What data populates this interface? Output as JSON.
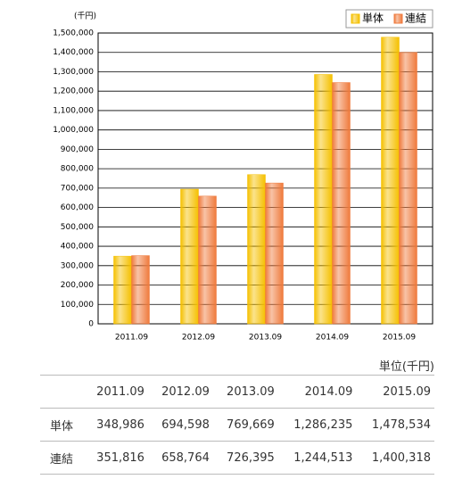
{
  "chart_data": {
    "type": "bar",
    "unit_label": "(千円)",
    "categories": [
      "2011.09",
      "2012.09",
      "2013.09",
      "2014.09",
      "2015.09"
    ],
    "series": [
      {
        "name": "単体",
        "color": "#f5c000",
        "values": [
          348986,
          694598,
          769669,
          1286235,
          1478534
        ]
      },
      {
        "name": "連結",
        "color": "#ef7a3c",
        "values": [
          351816,
          658764,
          726395,
          1244513,
          1400318
        ]
      }
    ],
    "ylim": [
      0,
      1500000
    ],
    "yticks": [
      0,
      {
        "value": 100000,
        "label": "100,000"
      },
      {
        "value": 200000,
        "label": "200,000"
      },
      {
        "value": 300000,
        "label": "300,000"
      },
      {
        "value": 400000,
        "label": "400,000"
      },
      {
        "value": 500000,
        "label": "500,000"
      },
      {
        "value": 600000,
        "label": "600,000"
      },
      {
        "value": 700000,
        "label": "700,000"
      },
      {
        "value": 800000,
        "label": "800,000"
      },
      {
        "value": 900000,
        "label": "900,000"
      },
      {
        "value": 1000000,
        "label": "1,000,000"
      },
      {
        "value": 1100000,
        "label": "1,100,000"
      },
      {
        "value": 1200000,
        "label": "1,200,000"
      },
      {
        "value": 1300000,
        "label": "1,300,000"
      },
      {
        "value": 1400000,
        "label": "1,400,000"
      },
      {
        "value": 1500000,
        "label": "1,500,000"
      }
    ],
    "grid": true,
    "legend": "top-right"
  },
  "table": {
    "unit": "単位(千円)",
    "header": [
      "2011.09",
      "2012.09",
      "2013.09",
      "2014.09",
      "2015.09"
    ],
    "rows": [
      {
        "label": "単体",
        "cells": [
          "348,986",
          "694,598",
          "769,669",
          "1,286,235",
          "1,478,534"
        ]
      },
      {
        "label": "連結",
        "cells": [
          "351,816",
          "658,764",
          "726,395",
          "1,244,513",
          "1,400,318"
        ]
      }
    ]
  }
}
